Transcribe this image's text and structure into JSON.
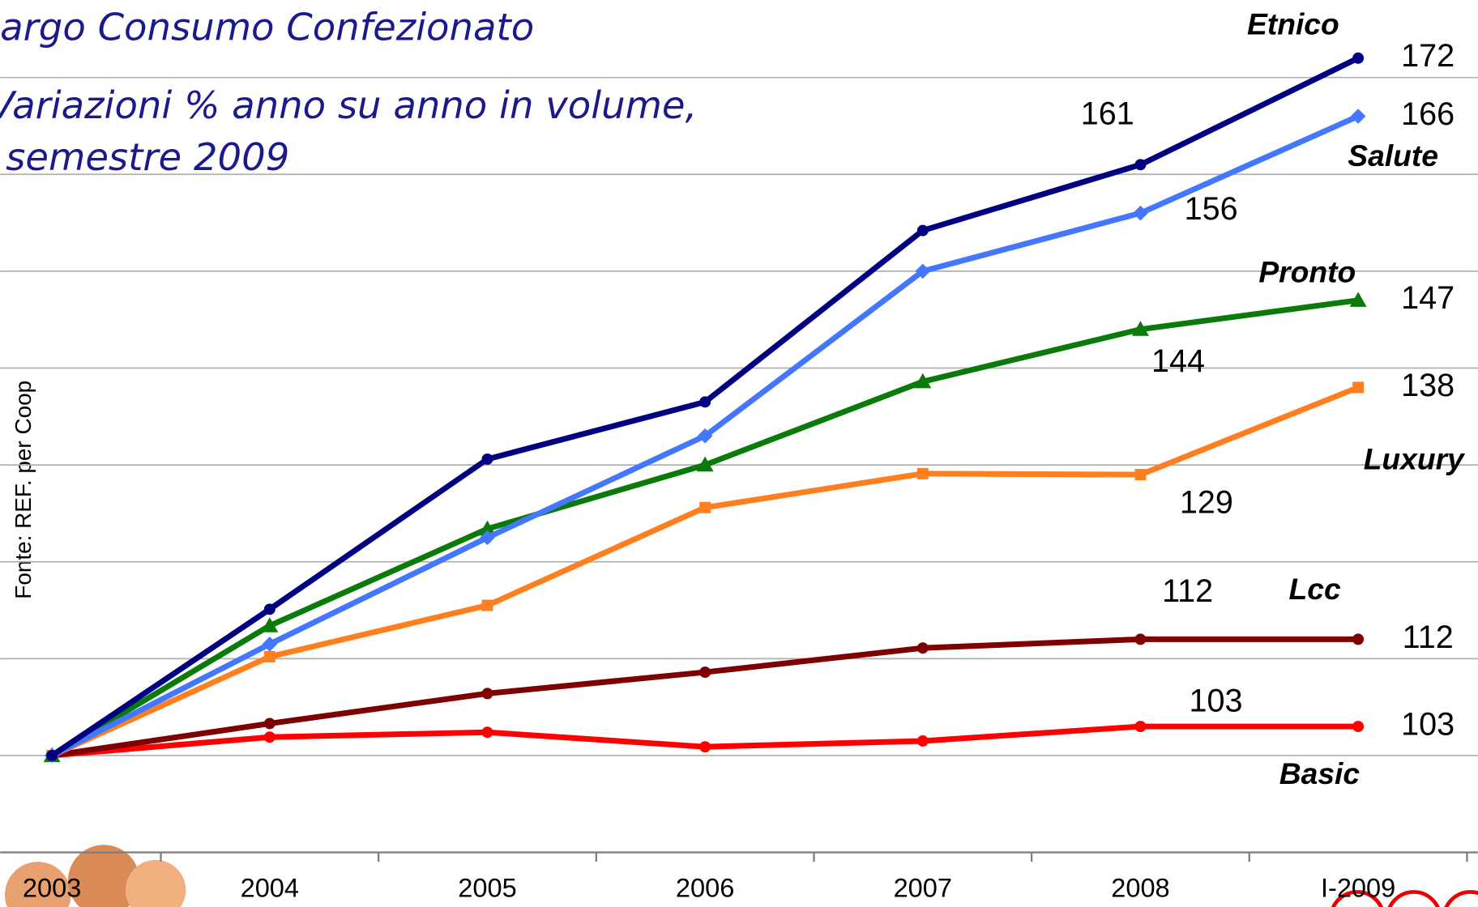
{
  "chart_data": {
    "type": "line",
    "title": "argo Consumo Confezionato",
    "subtitle": [
      "Variazioni % anno su anno in volume,",
      "semestre 2009"
    ],
    "source": "Fonte: REF. per Coop",
    "categories": [
      "2003",
      "2004",
      "2005",
      "2006",
      "2007",
      "2008",
      "I-2009"
    ],
    "ylim": [
      90,
      178
    ],
    "yticks": [
      100,
      110,
      120,
      130,
      140,
      150,
      160,
      170
    ],
    "grid": true,
    "series": [
      {
        "name": "Etnico",
        "color": "#000080",
        "marker": "circle",
        "values": [
          100,
          115.1,
          130.6,
          136.5,
          154.2,
          161,
          172
        ],
        "value_labels": [
          null,
          null,
          null,
          null,
          null,
          "161",
          "172"
        ]
      },
      {
        "name": "Salute",
        "color": "#4477ff",
        "marker": "diamond",
        "values": [
          100,
          111.5,
          122.5,
          133,
          150,
          156,
          166
        ],
        "value_labels": [
          null,
          null,
          null,
          null,
          null,
          "156",
          "166"
        ]
      },
      {
        "name": "Pronto",
        "color": "#0a7a0a",
        "marker": "triangle",
        "values": [
          100,
          113.4,
          123.4,
          130,
          138.6,
          144,
          147
        ],
        "value_labels": [
          null,
          null,
          null,
          null,
          null,
          "144",
          "147"
        ]
      },
      {
        "name": "Luxury",
        "color": "#ff7f1f",
        "marker": "square",
        "values": [
          100,
          110.2,
          115.5,
          125.6,
          129.1,
          129,
          138
        ],
        "value_labels": [
          null,
          null,
          null,
          null,
          null,
          "129",
          "138"
        ]
      },
      {
        "name": "Lcc",
        "color": "#7f0000",
        "marker": "circle",
        "values": [
          100,
          103.3,
          106.4,
          108.6,
          111.1,
          112,
          112
        ],
        "value_labels": [
          null,
          null,
          null,
          null,
          null,
          "112",
          "112"
        ]
      },
      {
        "name": "Basic",
        "color": "#ff0000",
        "marker": "circle",
        "values": [
          100,
          101.9,
          102.4,
          100.9,
          101.5,
          103,
          103
        ],
        "value_labels": [
          null,
          null,
          null,
          null,
          null,
          "103",
          "103"
        ]
      }
    ]
  }
}
